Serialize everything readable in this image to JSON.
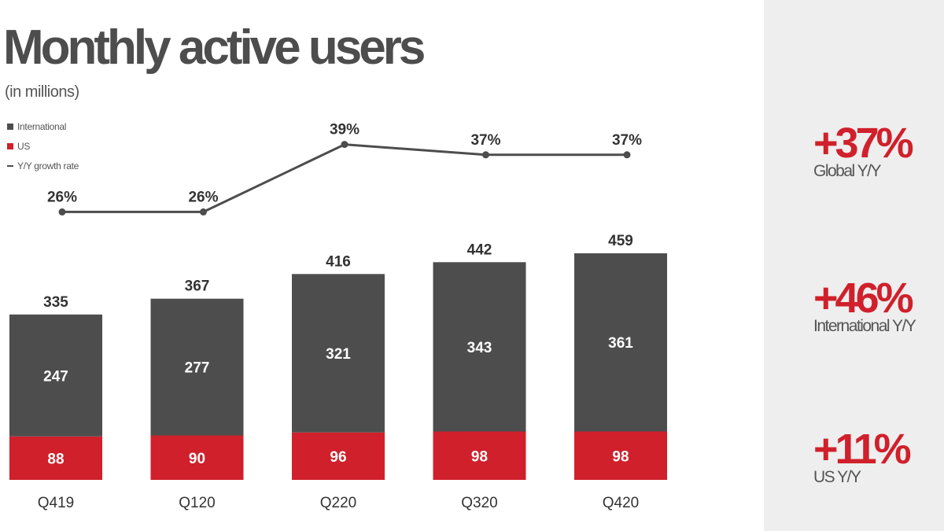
{
  "colors": {
    "international": "#4d4d4d",
    "us": "#d0202b",
    "growth_line": "#4d4d4d",
    "accent": "#d0202b",
    "panel_bg": "#eeeeee"
  },
  "chart_data": {
    "type": "bar",
    "stacked": true,
    "title": "Monthly active users",
    "subtitle": "(in millions)",
    "categories": [
      "Q419",
      "Q120",
      "Q220",
      "Q320",
      "Q420"
    ],
    "series": [
      {
        "name": "International",
        "values": [
          247,
          277,
          321,
          343,
          361
        ]
      },
      {
        "name": "US",
        "values": [
          88,
          90,
          96,
          98,
          98
        ]
      }
    ],
    "totals": [
      335,
      367,
      416,
      442,
      459
    ],
    "line_series": {
      "name": "Y/Y growth rate",
      "values": [
        26,
        26,
        39,
        37,
        37
      ],
      "labels": [
        "26%",
        "26%",
        "39%",
        "37%",
        "37%"
      ]
    },
    "legend": [
      "International",
      "US",
      "Y/Y growth rate"
    ],
    "legend_position": "top-left",
    "ylim": [
      0,
      460
    ],
    "grid": false
  },
  "stats": [
    {
      "value": "+37%",
      "label": "Global Y/Y"
    },
    {
      "value": "+46%",
      "label": "International Y/Y"
    },
    {
      "value": "+11%",
      "label": "US Y/Y"
    }
  ]
}
